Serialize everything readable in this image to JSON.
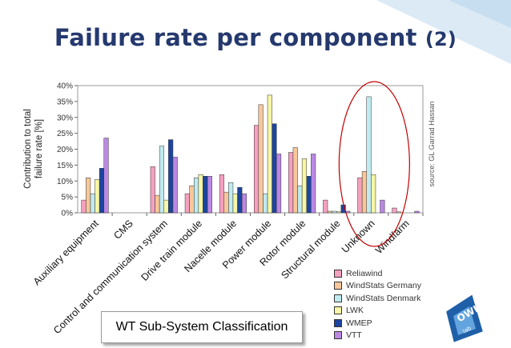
{
  "slide": {
    "title_main": "Failure rate per component",
    "title_number": "(2)",
    "classification_label": "WT Sub-System Classification",
    "logo_text": "OWI",
    "logo_subtext": "lab"
  },
  "colors": {
    "title": "#25396e",
    "corner": "#dbeaf5",
    "highlight_ellipse": "#c00000",
    "logo_blue": "#1f5fa8"
  },
  "chart_data": {
    "type": "bar",
    "title": "",
    "xlabel": "",
    "ylabel": "Contribution to total failure rate [%]",
    "ylabel_lines": [
      "Contribution to total",
      "failure rate [%]"
    ],
    "ylim": [
      0,
      40
    ],
    "yticks": [
      "0%",
      "5%",
      "10%",
      "15%",
      "20%",
      "25%",
      "30%",
      "35%",
      "40%"
    ],
    "source_note": "source: GL Garrad Hassan",
    "legend_position": "bottom-right",
    "highlight": "Unknown",
    "categories": [
      "Auxiliary equipment",
      "CMS",
      "Control and communication system",
      "Drive train module",
      "Nacelle module",
      "Power module",
      "Rotor module",
      "Structural module",
      "Unknown",
      "Windfarm"
    ],
    "series": [
      {
        "name": "Reliawind",
        "color": "#f6a0c0",
        "values": [
          4.0,
          0,
          14.5,
          6.0,
          12.0,
          27.5,
          19.0,
          4.0,
          11.0,
          1.5
        ]
      },
      {
        "name": "WindStats Germany",
        "color": "#f8c79a",
        "values": [
          11.0,
          0,
          5.5,
          8.5,
          6.5,
          34.0,
          20.5,
          0.5,
          13.0,
          0.3
        ]
      },
      {
        "name": "WindStats Denmark",
        "color": "#bfeaf0",
        "values": [
          6.0,
          0,
          21.0,
          11.0,
          9.5,
          6.0,
          8.5,
          0.5,
          36.5,
          0
        ]
      },
      {
        "name": "LWK",
        "color": "#f6f6a6",
        "values": [
          10.5,
          0,
          4.0,
          12.0,
          6.0,
          37.0,
          17.0,
          0.3,
          12.0,
          0
        ]
      },
      {
        "name": "WMEP",
        "color": "#1c45a0",
        "values": [
          14.0,
          0,
          23.0,
          11.5,
          8.0,
          28.0,
          11.5,
          2.5,
          0,
          0
        ]
      },
      {
        "name": "VTT",
        "color": "#bb88e4",
        "values": [
          23.5,
          0,
          17.5,
          11.5,
          6.0,
          18.5,
          18.5,
          0.5,
          4.0,
          0.5
        ]
      }
    ]
  }
}
